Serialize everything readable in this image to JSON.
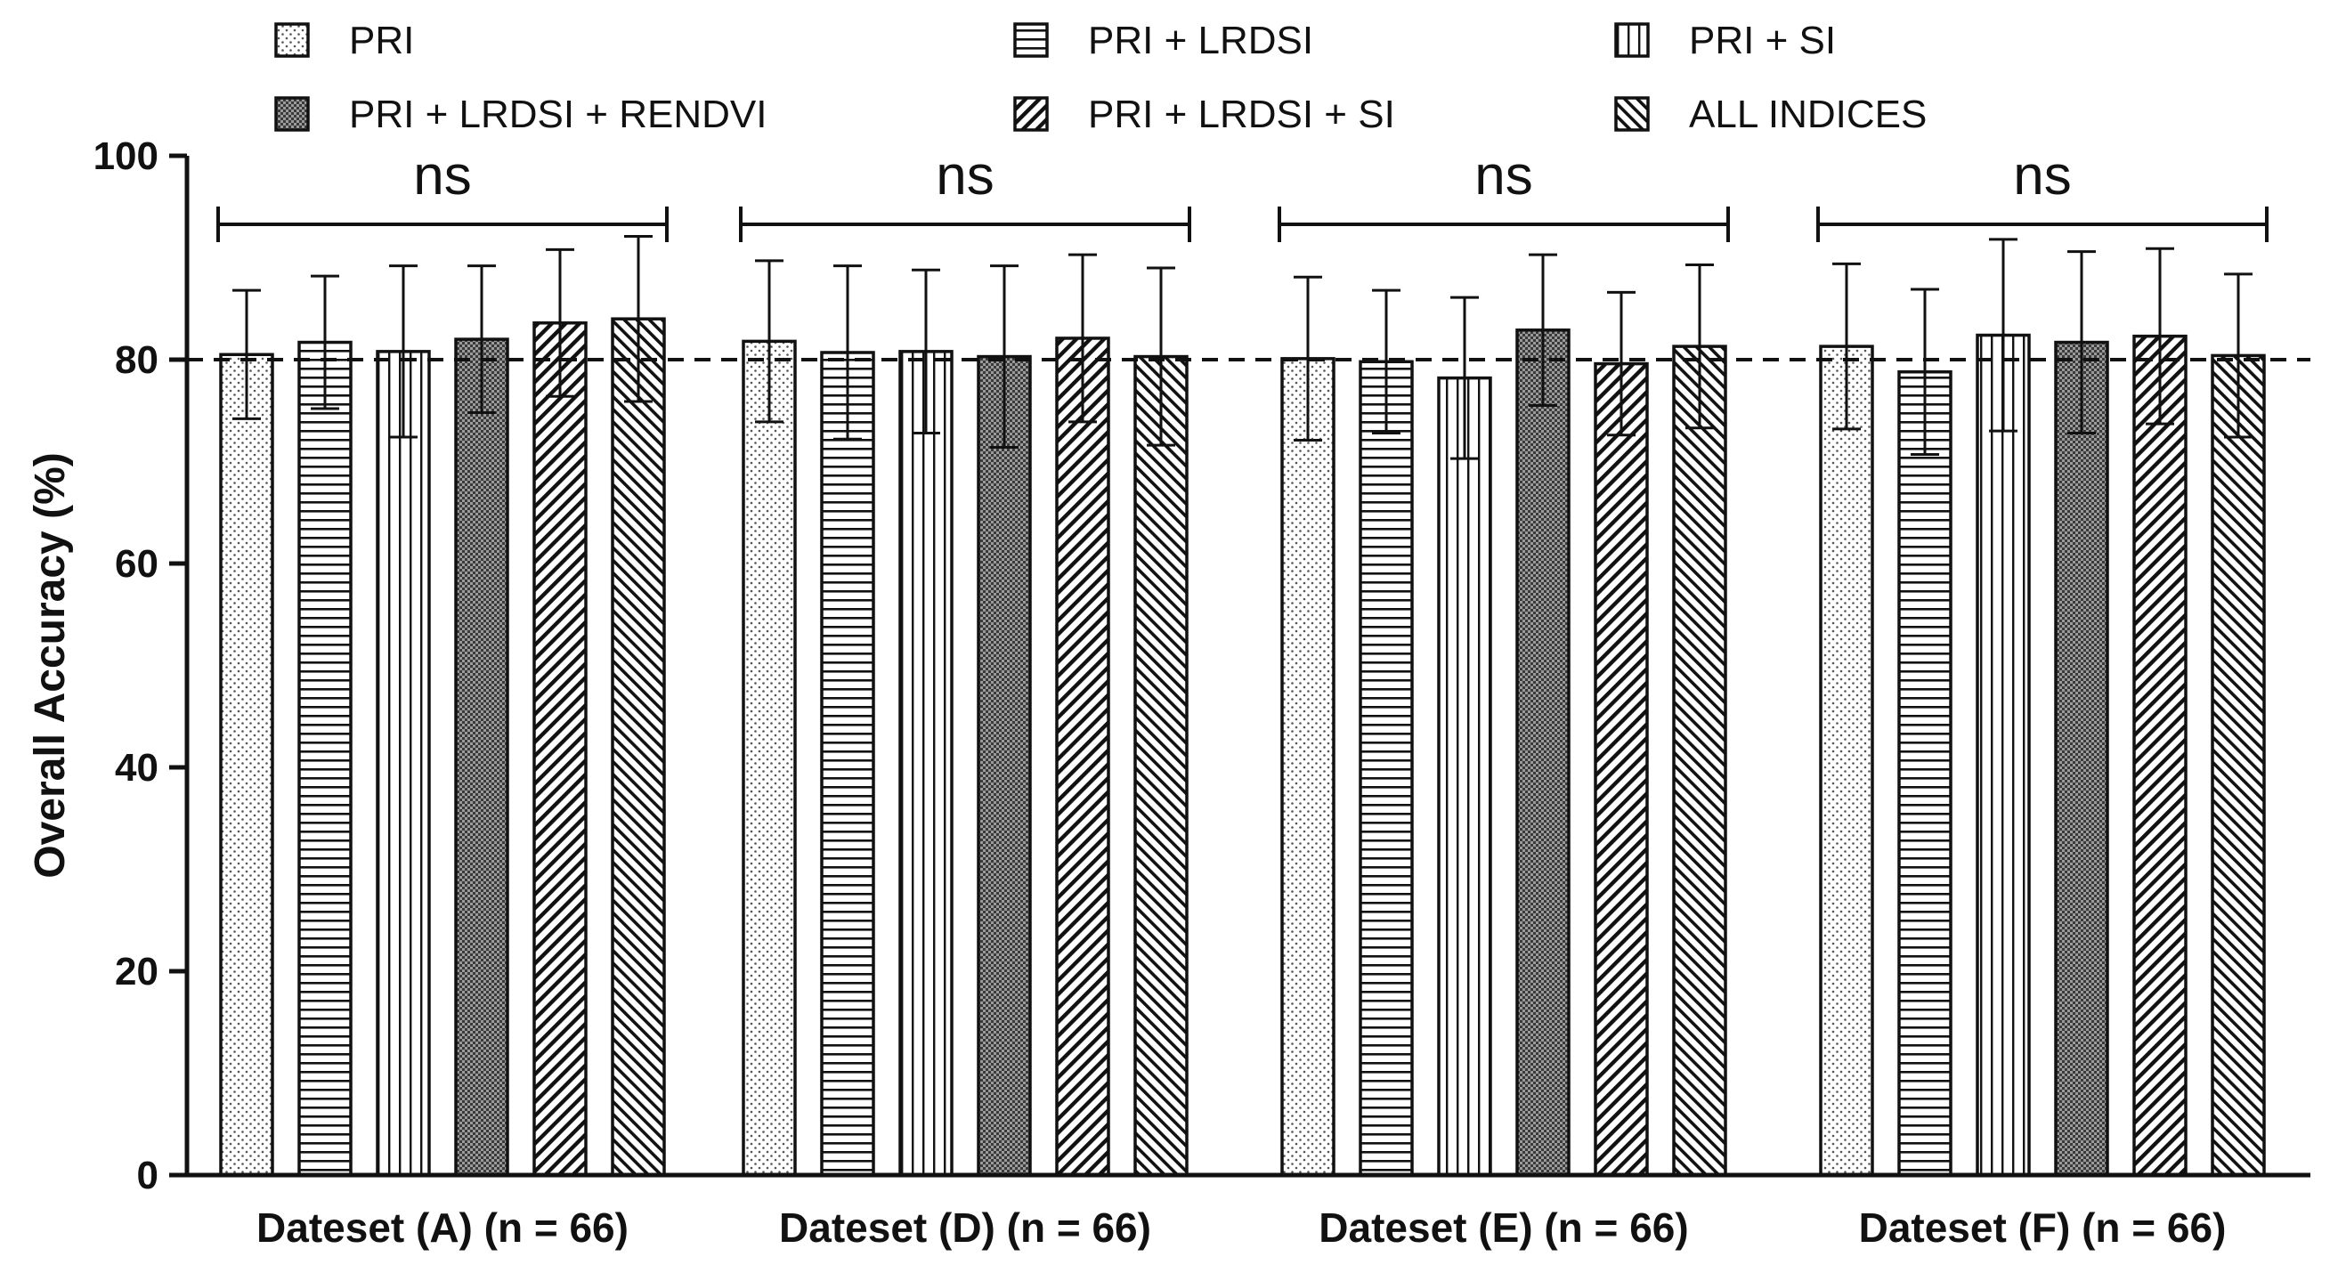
{
  "chart_data": {
    "type": "bar",
    "title": "",
    "xlabel": "",
    "ylabel": "Overall Accuracy (%)",
    "ylim": [
      0,
      100
    ],
    "yticks": [
      0,
      20,
      40,
      60,
      80,
      100
    ],
    "reference_line": 80,
    "categories": [
      "Dateset (A) (n = 66)",
      "Dateset (D) (n = 66)",
      "Dateset (E) (n = 66)",
      "Dateset (F) (n = 66)"
    ],
    "significance": [
      "ns",
      "ns",
      "ns",
      "ns"
    ],
    "series": [
      {
        "name": "PRI",
        "pattern": "dots",
        "values": [
          80.5,
          81.8,
          80.1,
          81.3
        ],
        "errors": [
          6.3,
          7.9,
          8.0,
          8.1
        ]
      },
      {
        "name": "PRI + LRDSI",
        "pattern": "hlines",
        "values": [
          81.7,
          80.7,
          79.8,
          78.8
        ],
        "errors": [
          6.5,
          8.5,
          7.0,
          8.1
        ]
      },
      {
        "name": "PRI + SI",
        "pattern": "vlines",
        "values": [
          80.8,
          80.8,
          78.2,
          82.4
        ],
        "errors": [
          8.4,
          8.0,
          7.9,
          9.4
        ]
      },
      {
        "name": "PRI + LRDSI + RENDVI",
        "pattern": "crosshatch",
        "values": [
          82.0,
          80.3,
          82.9,
          81.7
        ],
        "errors": [
          7.2,
          8.9,
          7.4,
          8.9
        ]
      },
      {
        "name": "PRI + LRDSI + SI",
        "pattern": "diag-up",
        "values": [
          83.6,
          82.1,
          79.6,
          82.3
        ],
        "errors": [
          7.2,
          8.2,
          7.0,
          8.6
        ]
      },
      {
        "name": "ALL INDICES",
        "pattern": "diag-down",
        "values": [
          84.0,
          80.3,
          81.3,
          80.4
        ],
        "errors": [
          8.1,
          8.7,
          8.0,
          8.0
        ]
      }
    ],
    "legend_position": "top"
  }
}
